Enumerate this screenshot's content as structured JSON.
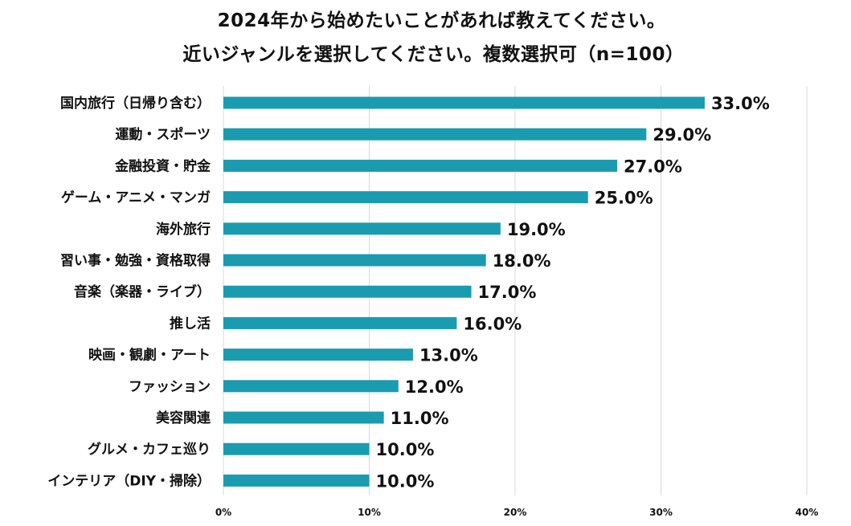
{
  "chart_data": {
    "type": "bar",
    "orientation": "horizontal",
    "title_line1": "2024年から始めたいことがあれば教えてください。",
    "title_line2": "近いジャンルを選択してください。複数選択可（n=100）",
    "categories": [
      "国内旅行（日帰り含む）",
      "運動・スポーツ",
      "金融投資・貯金",
      "ゲーム・アニメ・マンガ",
      "海外旅行",
      "習い事・勉強・資格取得",
      "音楽（楽器・ライブ）",
      "推し活",
      "映画・観劇・アート",
      "ファッション",
      "美容関連",
      "グルメ・カフェ巡り",
      "インテリア（DIY・掃除）"
    ],
    "values": [
      33.0,
      29.0,
      27.0,
      25.0,
      19.0,
      18.0,
      17.0,
      16.0,
      13.0,
      12.0,
      11.0,
      10.0,
      10.0
    ],
    "value_labels": [
      "33.0%",
      "29.0%",
      "27.0%",
      "25.0%",
      "19.0%",
      "18.0%",
      "17.0%",
      "16.0%",
      "13.0%",
      "12.0%",
      "11.0%",
      "10.0%",
      "10.0%"
    ],
    "x_ticks": [
      "0%",
      "10%",
      "20%",
      "30%",
      "40%"
    ],
    "xlim": [
      0,
      40
    ],
    "grid": true,
    "bar_color": "#1A9BB0",
    "grid_color": "#D9D9D9"
  }
}
